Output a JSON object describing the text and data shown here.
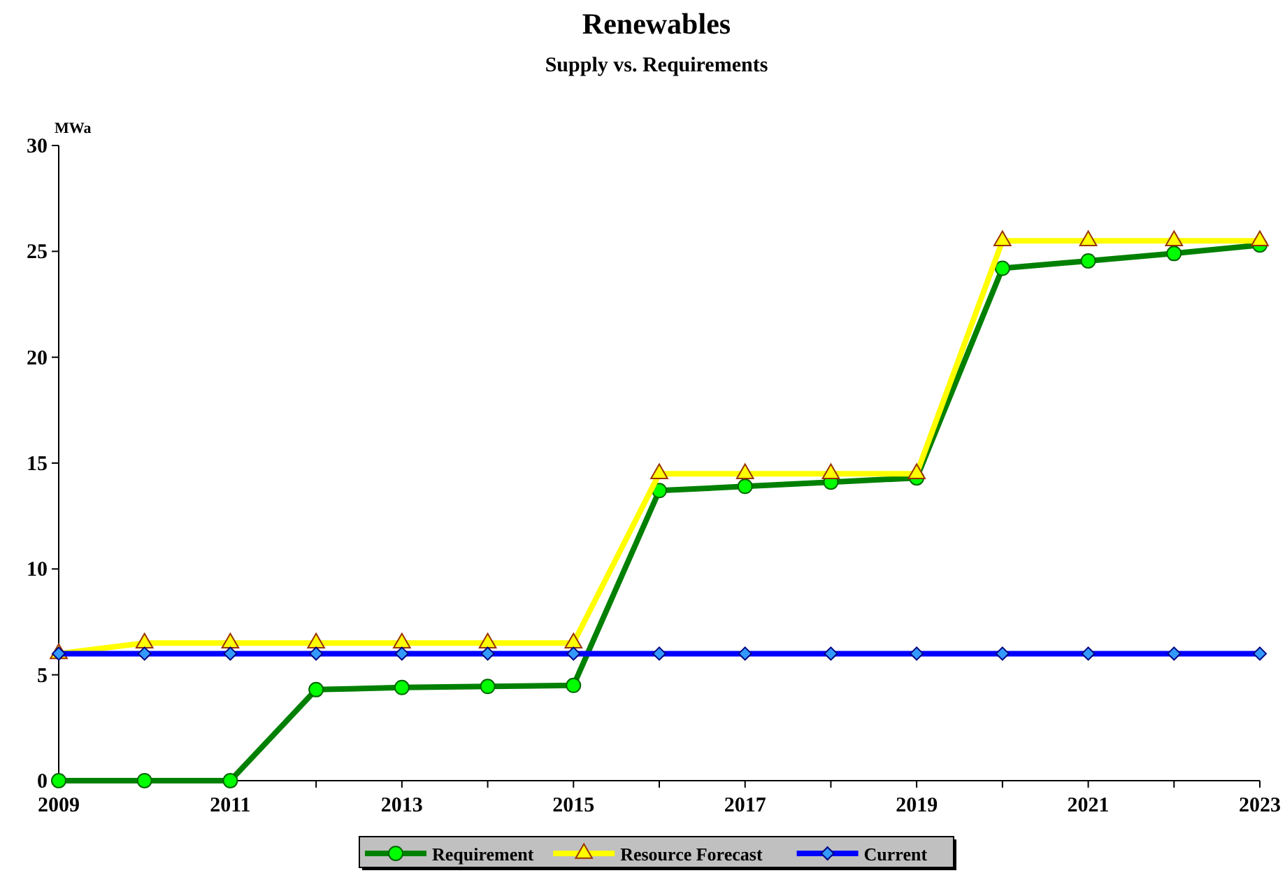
{
  "chart_data": {
    "type": "line",
    "title": "Renewables",
    "subtitle": "Supply vs. Requirements",
    "ylabel": "MWa",
    "x": [
      2009,
      2010,
      2011,
      2012,
      2013,
      2014,
      2015,
      2016,
      2017,
      2018,
      2019,
      2020,
      2021,
      2022,
      2023
    ],
    "series": [
      {
        "name": "Requirement",
        "color": "#008000",
        "marker": "circle",
        "values": [
          0,
          0,
          0,
          4.3,
          4.4,
          4.45,
          4.5,
          13.7,
          13.9,
          14.1,
          14.3,
          24.2,
          24.55,
          24.9,
          25.3
        ]
      },
      {
        "name": "Resource Forecast",
        "color": "#ffff00",
        "marker": "triangle",
        "values": [
          6,
          6.5,
          6.5,
          6.5,
          6.5,
          6.5,
          6.5,
          14.5,
          14.5,
          14.5,
          14.5,
          25.5,
          25.5,
          25.5,
          25.5
        ]
      },
      {
        "name": "Current",
        "color": "#0000ff",
        "marker": "diamond",
        "values": [
          6,
          6,
          6,
          6,
          6,
          6,
          6,
          6,
          6,
          6,
          6,
          6,
          6,
          6,
          6
        ]
      }
    ],
    "xlim": [
      2009,
      2023
    ],
    "xticks": [
      2009,
      2011,
      2013,
      2015,
      2017,
      2019,
      2021,
      2023
    ],
    "ylim": [
      0,
      30
    ],
    "yticks": [
      0,
      5,
      10,
      15,
      20,
      25,
      30
    ],
    "grid": false,
    "legend": "bottom"
  }
}
